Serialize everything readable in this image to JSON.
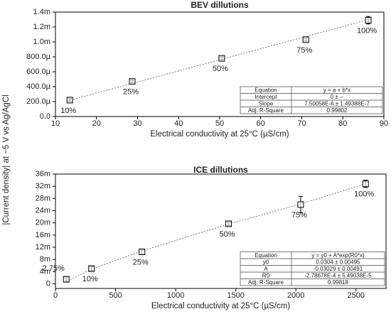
{
  "y_label": "|Current density| at −5 V vs Ag/AgCl",
  "chart_data": [
    {
      "type": "scatter",
      "title": "BEV dillutions",
      "xlabel": "Electrical conductivity at 25°C (µS/cm)",
      "xlim": [
        10,
        90
      ],
      "xticks": [
        10,
        20,
        30,
        40,
        50,
        60,
        70,
        80,
        90
      ],
      "ylim": [
        0,
        0.0014
      ],
      "yticks": [
        {
          "value": 0,
          "label": "0.0"
        },
        {
          "value": 0.0002,
          "label": "200.0µ"
        },
        {
          "value": 0.0004,
          "label": "400.0µ"
        },
        {
          "value": 0.0006,
          "label": "600.0µ"
        },
        {
          "value": 0.0008,
          "label": "800.0µ"
        },
        {
          "value": 0.001,
          "label": "1.0m"
        },
        {
          "value": 0.0012,
          "label": "1.2m"
        },
        {
          "value": 0.0014,
          "label": "1.4m"
        }
      ],
      "x": [
        13.5,
        28.7,
        50.5,
        71,
        86.2
      ],
      "values": [
        0.00022,
        0.00047,
        0.00078,
        0.00103,
        0.00129
      ],
      "errors": [
        2e-05,
        2e-05,
        2e-05,
        2e-05,
        5e-05
      ],
      "point_labels": [
        "10%",
        "25%",
        "50%",
        "75%",
        "100%"
      ],
      "fit": {
        "x": [
          13,
          87
        ],
        "y": [
          0.00021,
          0.00131
        ]
      },
      "table": {
        "rows": [
          [
            "Equation",
            "y = a + b*x"
          ],
          [
            "Intercept",
            "0 ± --"
          ],
          [
            "Slope",
            "7.50058E-6 ± 1.49388E-7"
          ],
          [
            "Adj. R-Square",
            "0.99802"
          ]
        ]
      }
    },
    {
      "type": "scatter",
      "title": "ICE dillutions",
      "xlabel": "Electrical conductivity at 25°C (µS/cm)",
      "xlim": [
        0,
        2750
      ],
      "xticks": [
        0,
        500,
        1000,
        1500,
        2000,
        2500
      ],
      "ylim": [
        -0.0015,
        0.036
      ],
      "yticks": [
        {
          "value": 0,
          "label": "0"
        },
        {
          "value": 0.004,
          "label": "4m"
        },
        {
          "value": 0.008,
          "label": "8m"
        },
        {
          "value": 0.012,
          "label": "12m"
        },
        {
          "value": 0.016,
          "label": "16m"
        },
        {
          "value": 0.02,
          "label": "20m"
        },
        {
          "value": 0.024,
          "label": "24m"
        },
        {
          "value": 0.028,
          "label": "28m"
        },
        {
          "value": 0.032,
          "label": "32m"
        },
        {
          "value": 0.036,
          "label": "36m"
        }
      ],
      "x": [
        90,
        300,
        720,
        1440,
        2040,
        2580
      ],
      "values": [
        0.0015,
        0.005,
        0.0105,
        0.0197,
        0.026,
        0.0328
      ],
      "errors": [
        0.0008,
        0.0007,
        0.0008,
        0.0006,
        0.0027,
        0.0012
      ],
      "point_labels": [
        "2.75%",
        "10%",
        "25%",
        "50%",
        "75%",
        "100%"
      ],
      "fit": {
        "x": [
          80,
          300,
          720,
          1440,
          2040,
          2580
        ],
        "y": [
          0.0006,
          0.0048,
          0.0108,
          0.0196,
          0.0262,
          0.0328
        ]
      },
      "table": {
        "rows": [
          [
            "Equation",
            "y = y0 + A*exp(R0*x)"
          ],
          [
            "y0",
            "0.0304 ± 0.00495"
          ],
          [
            "A",
            "-0.03029 ± 0.00491"
          ],
          [
            "R0",
            "-2.78678E-4 ± 5.49038E-5"
          ],
          [
            "Adj. R-Square",
            "0.99818"
          ]
        ]
      }
    }
  ]
}
